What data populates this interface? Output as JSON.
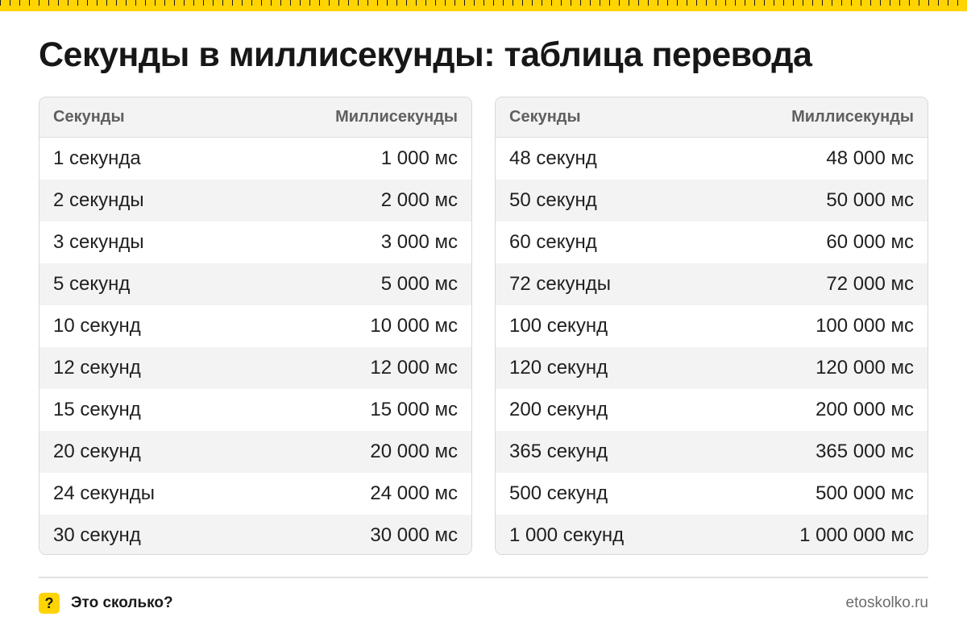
{
  "title": "Секунды в миллисекунды: таблица перевода",
  "colors": {
    "accent": "#ffd400",
    "header_bg": "#f3f3f3",
    "stripe_bg": "#f3f3f3"
  },
  "tables": [
    {
      "headers": {
        "left": "Секунды",
        "right": "Миллисекунды"
      },
      "rows": [
        {
          "s": "1 секунда",
          "ms": "1 000 мс"
        },
        {
          "s": "2 секунды",
          "ms": "2 000 мс"
        },
        {
          "s": "3 секунды",
          "ms": "3 000 мс"
        },
        {
          "s": "5 секунд",
          "ms": "5 000 мс"
        },
        {
          "s": "10 секунд",
          "ms": "10 000 мс"
        },
        {
          "s": "12 секунд",
          "ms": "12 000 мс"
        },
        {
          "s": "15 секунд",
          "ms": "15 000 мс"
        },
        {
          "s": "20 секунд",
          "ms": "20 000 мс"
        },
        {
          "s": "24 секунды",
          "ms": "24 000 мс"
        },
        {
          "s": "30 секунд",
          "ms": "30 000 мс"
        }
      ]
    },
    {
      "headers": {
        "left": "Секунды",
        "right": "Миллисекунды"
      },
      "rows": [
        {
          "s": "48 секунд",
          "ms": "48 000 мс"
        },
        {
          "s": "50 секунд",
          "ms": "50 000 мс"
        },
        {
          "s": "60 секунд",
          "ms": "60 000 мс"
        },
        {
          "s": "72 секунды",
          "ms": "72 000 мс"
        },
        {
          "s": "100 секунд",
          "ms": "100 000 мс"
        },
        {
          "s": "120 секунд",
          "ms": "120 000 мс"
        },
        {
          "s": "200 секунд",
          "ms": "200 000 мс"
        },
        {
          "s": "365 секунд",
          "ms": "365 000 мс"
        },
        {
          "s": "500 секунд",
          "ms": "500 000 мс"
        },
        {
          "s": "1 000 секунд",
          "ms": "1 000 000 мс"
        }
      ]
    }
  ],
  "footer": {
    "badge_icon": "question-mark-icon",
    "badge_glyph": "?",
    "brand_name": "Это сколько?",
    "site": "etoskolko.ru"
  }
}
